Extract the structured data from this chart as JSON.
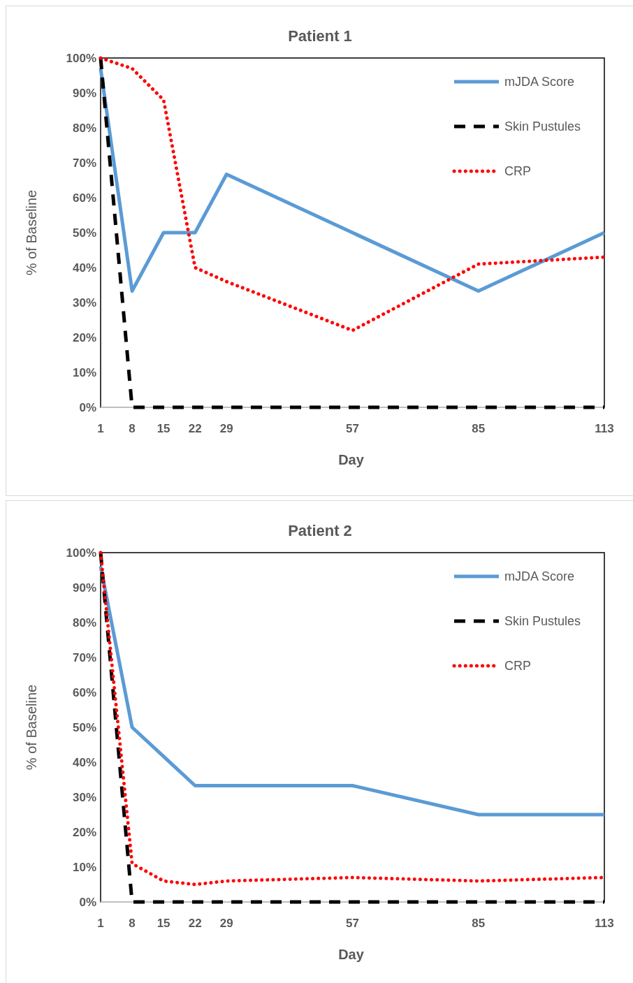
{
  "chart_data": [
    {
      "type": "line",
      "title": "Patient 1",
      "xlabel": "Day",
      "ylabel": "% of Baseline",
      "xlim": [
        1,
        113
      ],
      "xticks": [
        1,
        8,
        15,
        22,
        29,
        57,
        85,
        113
      ],
      "ylim": [
        0,
        100
      ],
      "yticks": [
        {
          "value": 0,
          "label": "0%"
        },
        {
          "value": 10,
          "label": "10%"
        },
        {
          "value": 20,
          "label": "20%"
        },
        {
          "value": 30,
          "label": "30%"
        },
        {
          "value": 40,
          "label": "40%"
        },
        {
          "value": 50,
          "label": "50%"
        },
        {
          "value": 60,
          "label": "60%"
        },
        {
          "value": 70,
          "label": "70%"
        },
        {
          "value": 80,
          "label": "80%"
        },
        {
          "value": 90,
          "label": "90%"
        },
        {
          "value": 100,
          "label": "100%"
        }
      ],
      "grid": false,
      "legend": "top right",
      "marker": "none",
      "series": [
        {
          "name": "mJDA Score",
          "color": "#5b9bd5",
          "line_style": "solid",
          "x": [
            1,
            8,
            15,
            22,
            29,
            85,
            113
          ],
          "values": [
            97,
            33.3,
            50,
            50,
            66.7,
            33.3,
            50
          ]
        },
        {
          "name": "Skin Pustules",
          "color": "#000000",
          "line_style": "dashed",
          "x": [
            1,
            8,
            15,
            22,
            29,
            57,
            85,
            113
          ],
          "values": [
            100,
            0,
            0,
            0,
            0,
            0,
            0,
            0
          ]
        },
        {
          "name": "CRP",
          "color": "#ff0000",
          "line_style": "dotted",
          "x": [
            1,
            8,
            15,
            22,
            29,
            57,
            85,
            113
          ],
          "values": [
            100,
            97,
            88,
            40,
            36,
            22,
            41,
            43
          ]
        }
      ]
    },
    {
      "type": "line",
      "title": "Patient 2",
      "xlabel": "Day",
      "ylabel": "% of Baseline",
      "xlim": [
        1,
        113
      ],
      "xticks": [
        1,
        8,
        15,
        22,
        29,
        57,
        85,
        113
      ],
      "ylim": [
        0,
        100
      ],
      "yticks": [
        {
          "value": 0,
          "label": "0%"
        },
        {
          "value": 10,
          "label": "10%"
        },
        {
          "value": 20,
          "label": "20%"
        },
        {
          "value": 30,
          "label": "30%"
        },
        {
          "value": 40,
          "label": "40%"
        },
        {
          "value": 50,
          "label": "50%"
        },
        {
          "value": 60,
          "label": "60%"
        },
        {
          "value": 70,
          "label": "70%"
        },
        {
          "value": 80,
          "label": "80%"
        },
        {
          "value": 90,
          "label": "90%"
        },
        {
          "value": 100,
          "label": "100%"
        }
      ],
      "grid": false,
      "legend": "top right",
      "marker": "none",
      "series": [
        {
          "name": "mJDA Score",
          "color": "#5b9bd5",
          "line_style": "solid",
          "x": [
            1,
            8,
            22,
            57,
            85,
            113
          ],
          "values": [
            96,
            50,
            33.3,
            33.3,
            25,
            25
          ]
        },
        {
          "name": "Skin Pustules",
          "color": "#000000",
          "line_style": "dashed",
          "x": [
            1,
            8,
            15,
            22,
            29,
            57,
            85,
            113
          ],
          "values": [
            100,
            0,
            0,
            0,
            0,
            0,
            0,
            0
          ]
        },
        {
          "name": "CRP",
          "color": "#ff0000",
          "line_style": "dotted",
          "x": [
            1,
            8,
            15,
            22,
            29,
            57,
            85,
            113
          ],
          "values": [
            100,
            11,
            6,
            5,
            6,
            7,
            6,
            7
          ]
        }
      ]
    }
  ]
}
